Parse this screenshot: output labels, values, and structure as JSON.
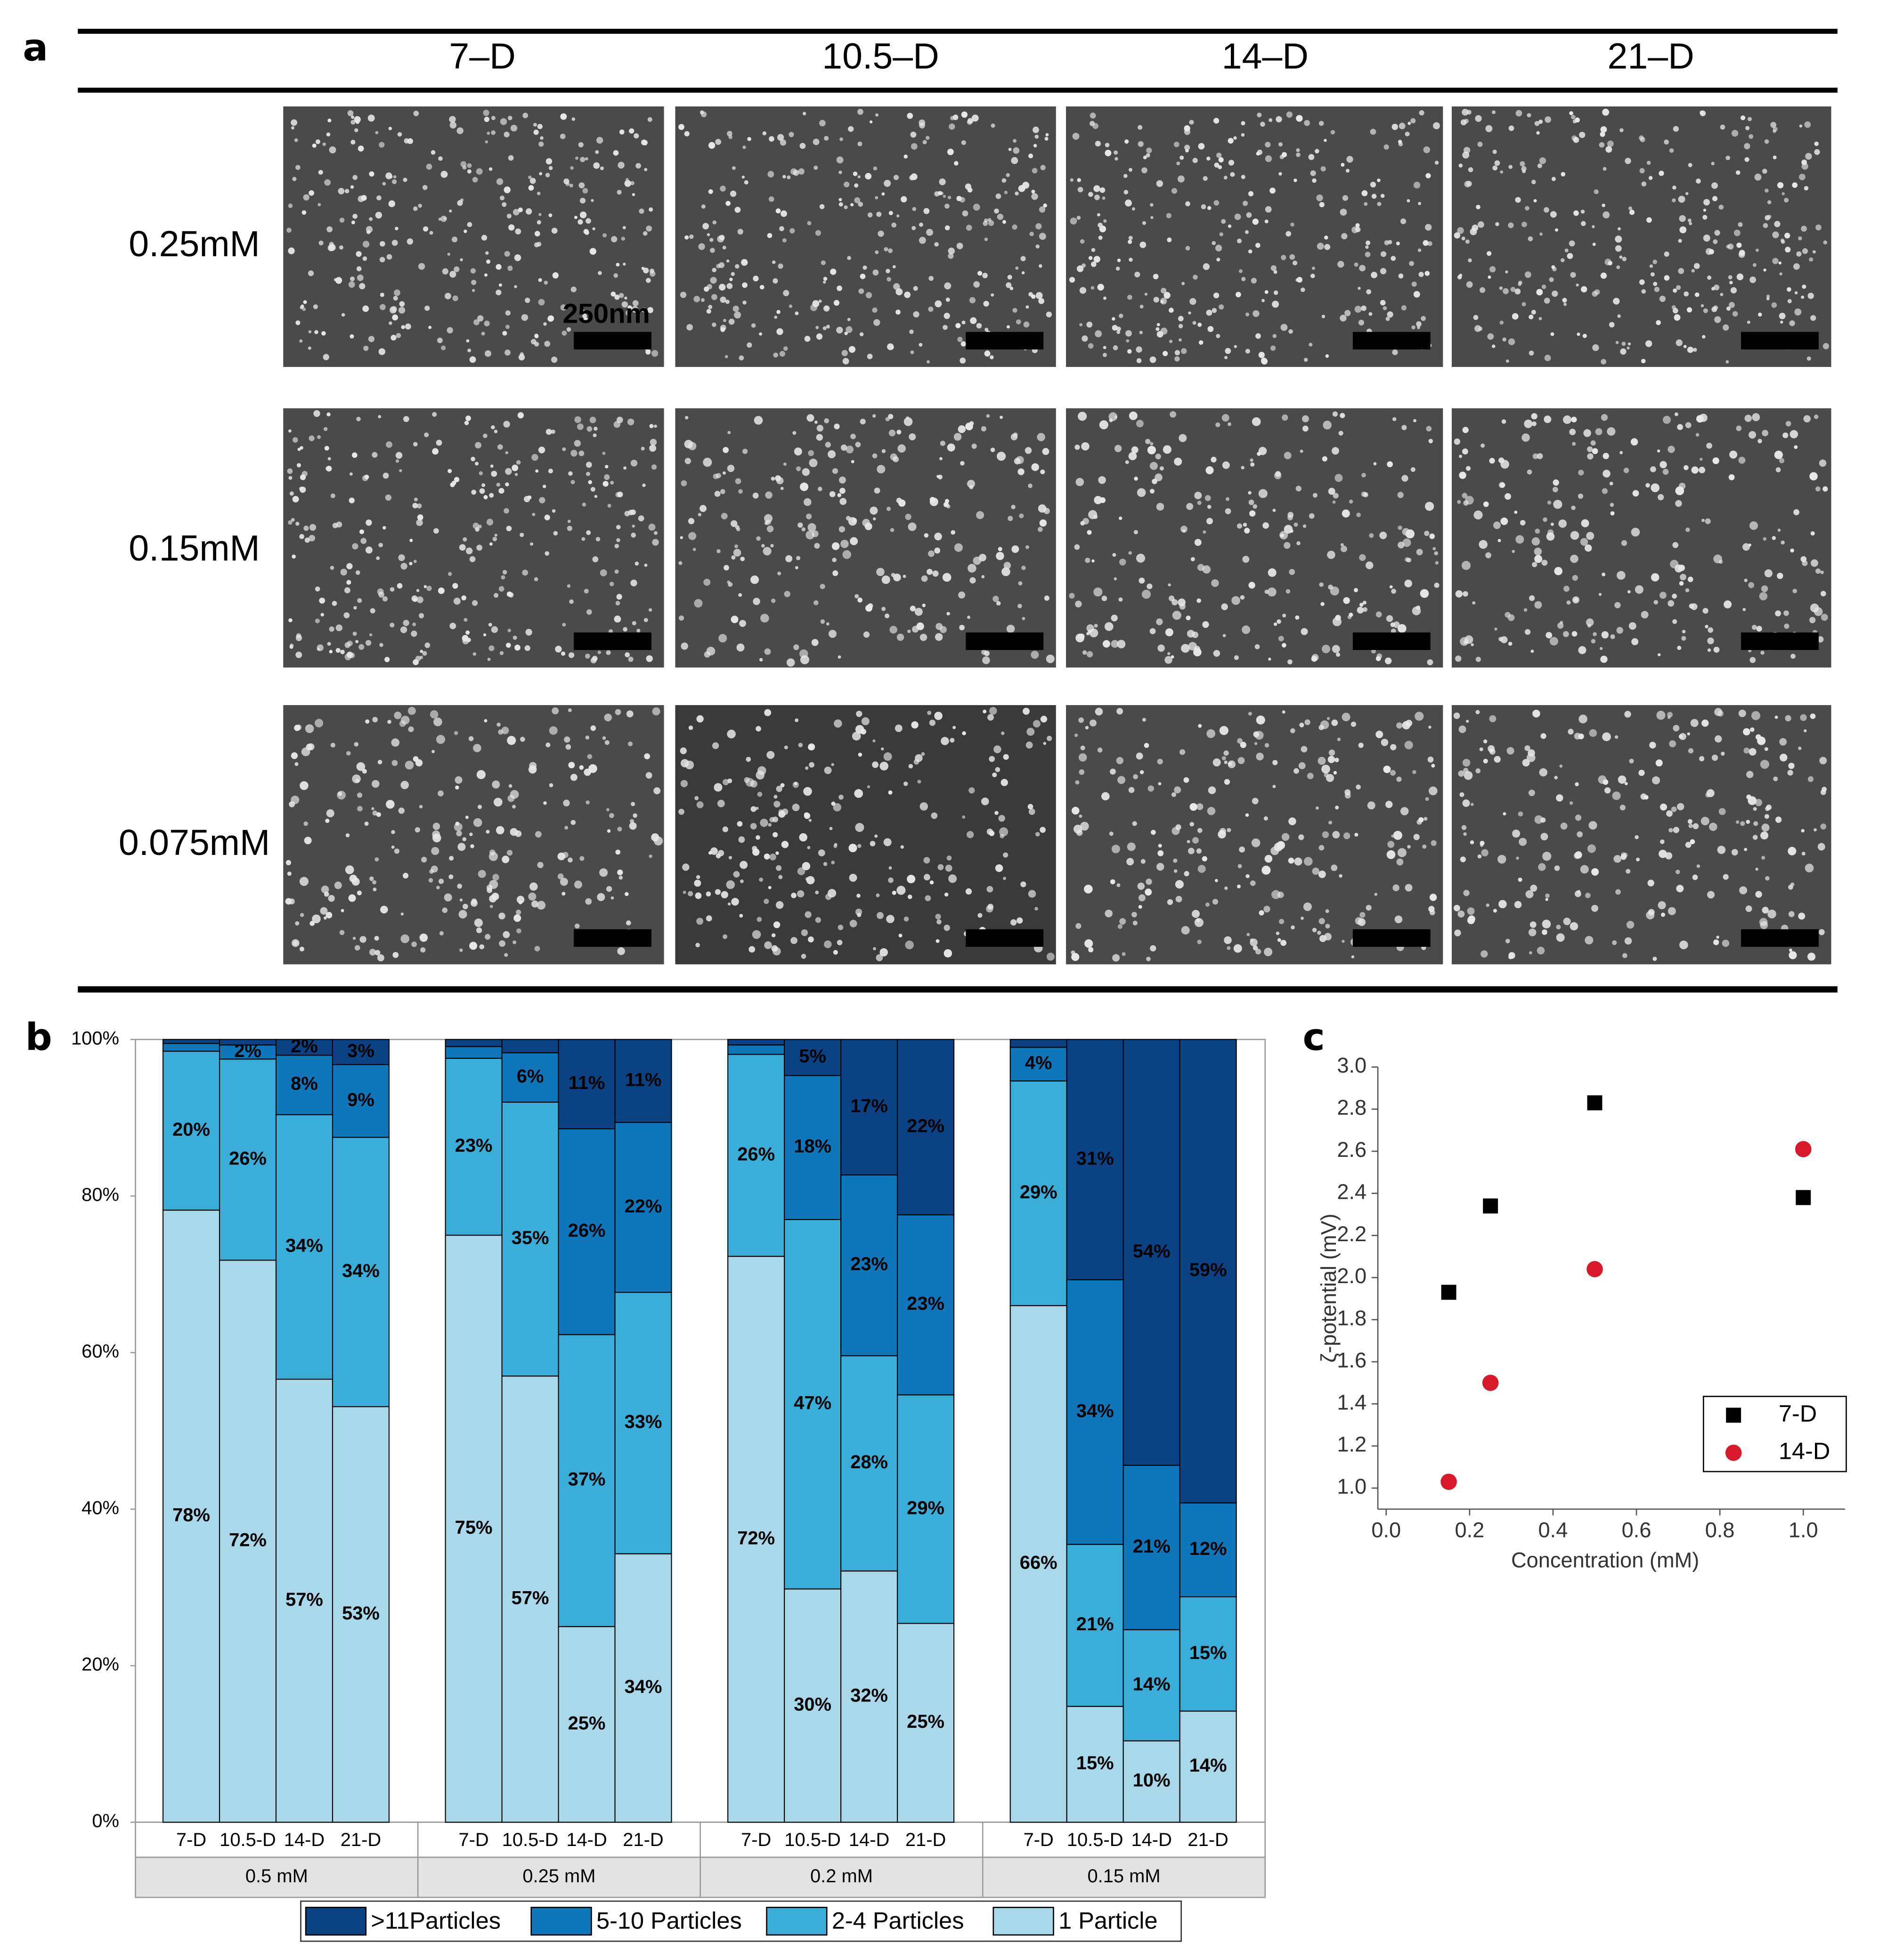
{
  "panel_a": {
    "label": "a",
    "columns": [
      "7–D",
      "10.5–D",
      "14–D",
      "21–D"
    ],
    "rows": [
      "0.25mM",
      "0.15mM",
      "0.075mM"
    ],
    "scale_bar": "250nm"
  },
  "chart_data": [
    {
      "type": "bar",
      "panel_label": "b",
      "stacked": true,
      "categories": [
        "7-D",
        "10.5-D",
        "14-D",
        "21-D",
        "7-D",
        "10.5-D",
        "14-D",
        "21-D",
        "7-D",
        "10.5-D",
        "14-D",
        "21-D",
        "7-D",
        "10.5-D",
        "14-D",
        "21-D"
      ],
      "groups": [
        "0.5 mM",
        "0.25 mM",
        "0.2 mM",
        "0.15 mM"
      ],
      "ylim": [
        0,
        100
      ],
      "yticks": [
        {
          "value": 0,
          "label": "0%"
        },
        {
          "value": 20,
          "label": "20%"
        },
        {
          "value": 40,
          "label": "40%"
        },
        {
          "value": 60,
          "label": "60%"
        },
        {
          "value": 80,
          "label": "80%"
        },
        {
          "value": 100,
          "label": "100%"
        }
      ],
      "legend": "bottom",
      "series": [
        {
          "name": "1 Particle",
          "color": "#a8d8ea",
          "label_color": "#000000",
          "values": [
            78.2,
            71.8,
            56.6,
            53.1,
            75.0,
            57.0,
            25.0,
            34.3,
            72.3,
            29.8,
            32.1,
            25.4,
            66.0,
            14.8,
            10.4,
            14.2
          ],
          "value_labels": [
            "78%",
            "72%",
            "57%",
            "53%",
            "75%",
            "57%",
            "25%",
            "34%",
            "72%",
            "30%",
            "32%",
            "25%",
            "66%",
            "15%",
            "10%",
            "14%"
          ]
        },
        {
          "name": "2-4 Particles",
          "color": "#3aaed8",
          "label_color": "#000000",
          "values": [
            20.3,
            25.7,
            33.8,
            34.4,
            22.6,
            35.0,
            37.3,
            33.4,
            25.8,
            47.2,
            27.5,
            29.2,
            28.7,
            20.7,
            14.2,
            14.6
          ],
          "value_labels": [
            "20%",
            "26%",
            "34%",
            "34%",
            "23%",
            "35%",
            "37%",
            "33%",
            "26%",
            "47%",
            "28%",
            "29%",
            "29%",
            "21%",
            "14%",
            "15%"
          ]
        },
        {
          "name": "5-10 Particles",
          "color": "#0e76b9",
          "label_color": "#ffffff",
          "values": [
            1.0,
            1.8,
            7.6,
            9.3,
            1.5,
            6.3,
            26.3,
            21.7,
            1.2,
            18.4,
            23.1,
            23.0,
            4.3,
            33.8,
            21.0,
            12.0
          ],
          "value_labels": [
            null,
            "2%",
            "8%",
            "9%",
            null,
            "6%",
            "26%",
            "22%",
            null,
            "18%",
            "23%",
            "23%",
            "4%",
            "34%",
            "21%",
            "12%"
          ]
        },
        {
          "name": ">11Particles",
          "color": "#0b4283",
          "label_color": "#ffffff",
          "values": [
            0.5,
            0.7,
            2.0,
            3.2,
            0.9,
            1.7,
            11.4,
            10.6,
            0.7,
            4.6,
            17.3,
            22.4,
            1.0,
            30.7,
            54.4,
            59.2
          ],
          "value_labels": [
            null,
            null,
            "2%",
            "3%",
            null,
            null,
            "11%",
            "11%",
            null,
            "5%",
            "17%",
            "22%",
            null,
            "31%",
            "54%",
            "59%"
          ]
        }
      ]
    },
    {
      "type": "scatter",
      "panel_label": "c",
      "xlabel": "Concentration (mM)",
      "ylabel": "ζ-potential (mV)",
      "xlim": [
        -0.02,
        1.1
      ],
      "ylim": [
        0.9,
        3.0
      ],
      "xticks": [
        {
          "value": 0,
          "label": "0.0"
        },
        0.2,
        0.4,
        0.6,
        0.8,
        {
          "value": 1,
          "label": "1.0"
        }
      ],
      "yticks": [
        {
          "value": 1,
          "label": "1.0"
        },
        1.2,
        1.4,
        1.6,
        1.8,
        {
          "value": 2,
          "label": "2.0"
        },
        2.2,
        2.4,
        2.6,
        2.8,
        {
          "value": 3,
          "label": "3.0"
        }
      ],
      "legend": "lower right",
      "series": [
        {
          "name": "7-D",
          "color": "#000000",
          "marker": "square",
          "x": [
            0.15,
            0.25,
            0.5,
            1.0
          ],
          "values": [
            1.93,
            2.34,
            2.83,
            2.38
          ]
        },
        {
          "name": "14-D",
          "color": "#d7192c",
          "marker": "circle",
          "x": [
            0.15,
            0.25,
            0.5,
            1.0
          ],
          "values": [
            1.03,
            1.5,
            2.04,
            2.61
          ]
        }
      ]
    }
  ]
}
